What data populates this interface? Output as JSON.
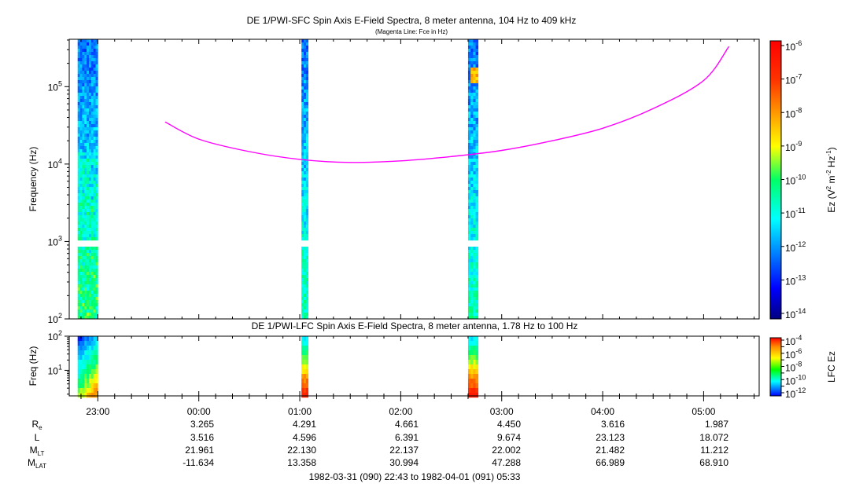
{
  "chart_data": [
    {
      "type": "heatmap",
      "title": "DE 1/PWI-SFC  Spin Axis E-Field Spectra, 8 meter antenna, 104 Hz to 409 kHz",
      "subtitle": "(Magenta Line: Fce in Hz)",
      "ylabel": "Frequency (Hz)",
      "yscale": "log",
      "ylim": [
        100,
        409000
      ],
      "yticks": [
        {
          "value": 100,
          "base": "10",
          "exp": "2"
        },
        {
          "value": 1000,
          "base": "10",
          "exp": "3"
        },
        {
          "value": 10000,
          "base": "10",
          "exp": "4"
        },
        {
          "value": 100000,
          "base": "10",
          "exp": "5"
        }
      ],
      "colorbar": {
        "label_main": "Ez (V",
        "label_sup1": "2",
        "label_mid": " m",
        "label_sup2": "-2",
        "label_mid2": " Hz",
        "label_sup3": "-1",
        "label_end": ")",
        "scale": "log",
        "range": [
          1e-14,
          1e-06
        ],
        "ticks": [
          {
            "value": 1e-06,
            "base": "10",
            "exp": "-6"
          },
          {
            "value": 1e-07,
            "base": "10",
            "exp": "-7"
          },
          {
            "value": 1e-08,
            "base": "10",
            "exp": "-8"
          },
          {
            "value": 1e-09,
            "base": "10",
            "exp": "-9"
          },
          {
            "value": 1e-10,
            "base": "10",
            "exp": "-10"
          },
          {
            "value": 1e-11,
            "base": "10",
            "exp": "-11"
          },
          {
            "value": 1e-12,
            "base": "10",
            "exp": "-12"
          },
          {
            "value": 1e-13,
            "base": "10",
            "exp": "-13"
          },
          {
            "value": 1e-14,
            "base": "10",
            "exp": "-14"
          }
        ]
      },
      "data_segments": [
        {
          "start": "22:48",
          "end": "23:00"
        },
        {
          "start": "01:01",
          "end": "01:05"
        },
        {
          "start": "02:40",
          "end": "02:46"
        }
      ],
      "fce_line": {
        "color": "#ff00ff",
        "times": [
          "23:40",
          "00:00",
          "00:30",
          "01:00",
          "01:30",
          "02:00",
          "02:30",
          "03:00",
          "03:30",
          "04:00",
          "04:30",
          "05:00",
          "05:15"
        ],
        "values_hz": [
          35000,
          21000,
          14500,
          11500,
          10500,
          11000,
          12500,
          15000,
          20000,
          29000,
          52000,
          120000,
          330000
        ]
      }
    },
    {
      "type": "heatmap",
      "title": "DE 1/PWI-LFC  Spin Axis E-Field Spectra, 8 meter antenna, 1.78 Hz to 100 Hz",
      "ylabel": "Freq (Hz)",
      "yscale": "log",
      "ylim": [
        1.78,
        100
      ],
      "yticks": [
        {
          "value": 10,
          "base": "10",
          "exp": "1"
        },
        {
          "value": 100,
          "base": "10",
          "exp": "2"
        }
      ],
      "colorbar": {
        "label": "LFC Ez",
        "scale": "log",
        "range": [
          1e-12,
          0.0001
        ],
        "ticks": [
          {
            "value": 0.0001,
            "base": "10",
            "exp": "-4"
          },
          {
            "value": 1e-06,
            "base": "10",
            "exp": "-6"
          },
          {
            "value": 1e-08,
            "base": "10",
            "exp": "-8"
          },
          {
            "value": 1e-10,
            "base": "10",
            "exp": "-10"
          },
          {
            "value": 1e-12,
            "base": "10",
            "exp": "-12"
          }
        ]
      },
      "data_segments": [
        {
          "start": "22:48",
          "end": "23:00"
        },
        {
          "start": "01:01",
          "end": "01:05"
        },
        {
          "start": "02:40",
          "end": "02:46"
        }
      ]
    }
  ],
  "time_axis": {
    "start_label": "22:43",
    "end_label": "05:33",
    "ticks": [
      "23:00",
      "00:00",
      "01:00",
      "02:00",
      "03:00",
      "04:00",
      "05:00"
    ]
  },
  "ephemeris": {
    "rows": [
      {
        "label": "R",
        "sub": "e",
        "values": [
          "",
          "3.265",
          "4.291",
          "4.661",
          "4.450",
          "3.616",
          "1.987"
        ]
      },
      {
        "label": "L",
        "sub": "",
        "values": [
          "",
          "3.516",
          "4.596",
          "6.391",
          "9.674",
          "23.123",
          "18.072"
        ]
      },
      {
        "label": "M",
        "sub": "LT",
        "values": [
          "",
          "21.961",
          "22.130",
          "22.137",
          "22.002",
          "21.482",
          "11.212"
        ]
      },
      {
        "label": "M",
        "sub": "LAT",
        "values": [
          "",
          "-11.634",
          "13.358",
          "30.994",
          "47.288",
          "66.989",
          "68.910"
        ]
      }
    ]
  },
  "footer": "1982-03-31 (090) 22:43 to 1982-04-01 (091) 05:33"
}
